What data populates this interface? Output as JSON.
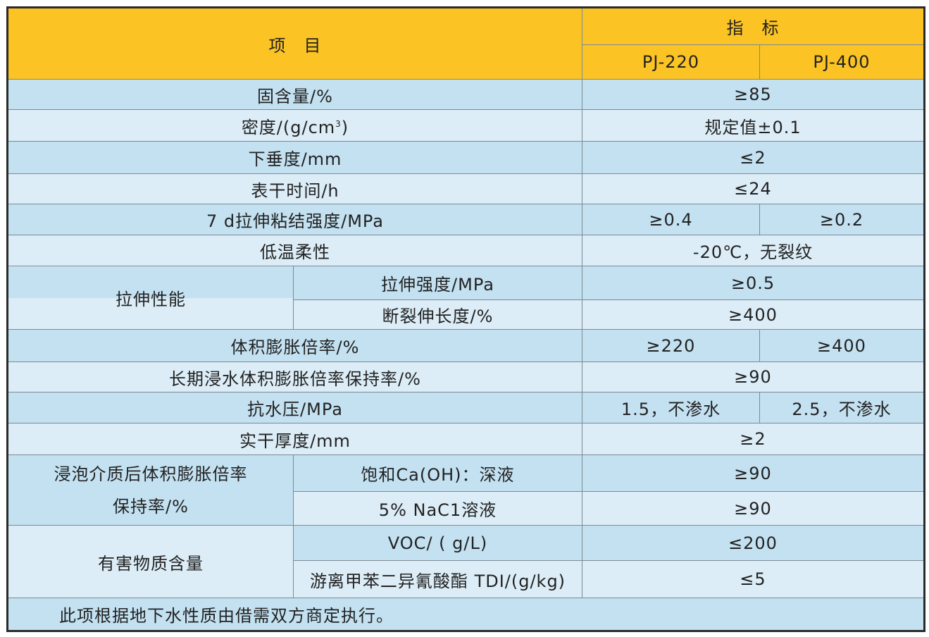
{
  "header": {
    "item": "项　目",
    "spec": "指　标",
    "models": [
      "PJ-220",
      "PJ-400"
    ]
  },
  "rows": [
    {
      "item": "固含量/%",
      "value": "≥85"
    },
    {
      "item_main": "密度/(g/cm",
      "item_sup": "3",
      "item_end": ")",
      "value": "规定值±0.1"
    },
    {
      "item": "下垂度/mm",
      "value": "≤2"
    },
    {
      "item": "表干时间/h",
      "value": "≤24"
    },
    {
      "item": "7 d拉伸粘结强度/MPa",
      "v220": "≥0.4",
      "v400": "≥0.2"
    },
    {
      "item": "低温柔性",
      "value": "-20℃，无裂纹"
    },
    {
      "group": "拉伸性能",
      "subs": [
        {
          "item": "拉伸强度/MPa",
          "value": "≥0.5"
        },
        {
          "item": "断裂伸长度/%",
          "value": "≥400"
        }
      ]
    },
    {
      "item": "体积膨胀倍率/%",
      "v220": "≥220",
      "v400": "≥400"
    },
    {
      "item": "长期浸水体积膨胀倍率保持率/%",
      "value": "≥90"
    },
    {
      "item": "抗水压/MPa",
      "v220": "1.5，不渗水",
      "v400": "2.5，不渗水"
    },
    {
      "item": "实干厚度/mm",
      "value": "≥2"
    },
    {
      "group_line1": "浸泡介质后体积膨胀倍率",
      "group_line2": "保持率/%",
      "subs": [
        {
          "item": "饱和Ca(OH)：深液",
          "value": "≥90"
        },
        {
          "item": "5% NaC1溶液",
          "value": "≥90"
        }
      ]
    },
    {
      "group": "有害物质含量",
      "subs": [
        {
          "item": "VOC/ ( g/L)",
          "value": "≤200"
        },
        {
          "item": "游离甲苯二异氰酸酯 TDI/(g/kg)",
          "value": "≤5"
        }
      ]
    }
  ],
  "footer": "此项根据地下水性质由借需双方商定执行。",
  "colors": {
    "header": "#fbc324",
    "row_dark": "#c3e1f1",
    "row_light": "#dcedf7"
  }
}
